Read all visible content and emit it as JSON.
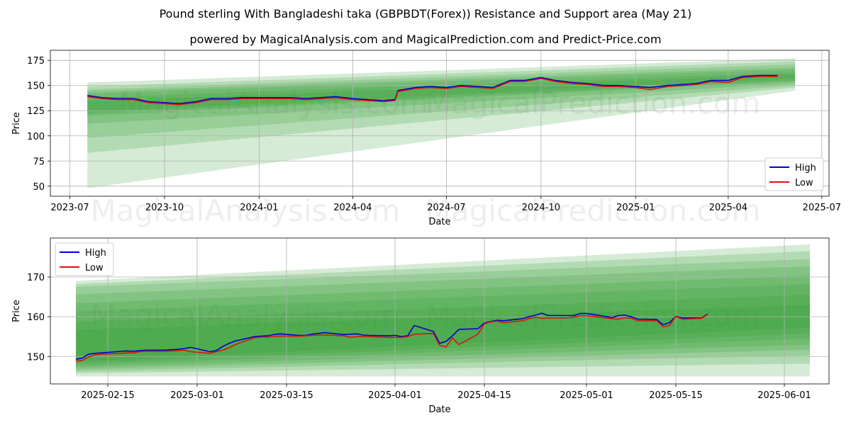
{
  "titles": {
    "main": "Pound sterling With Bangladeshi taka (GBPBDT(Forex)) Resistance and Support area (May 21)",
    "sub": "powered by MagicalAnalysis.com and MagicalPrediction.com and Predict-Price.com"
  },
  "watermarks": [
    "MagicalAnalysis.com",
    "MagicalPrediction.com"
  ],
  "colors": {
    "high": "#0000cc",
    "low": "#dd1111",
    "band": "#2e9a2e",
    "grid": "#b0b0b0"
  },
  "chart_data": [
    {
      "type": "line",
      "xlabel": "Date",
      "ylabel": "Price",
      "x_ticks": [
        "2023-07",
        "2023-10",
        "2024-01",
        "2024-04",
        "2024-07",
        "2024-10",
        "2025-01",
        "2025-04",
        "2025-07"
      ],
      "y_ticks": [
        50,
        75,
        100,
        125,
        150,
        175
      ],
      "xlim": [
        "2023-06-12",
        "2025-07-08"
      ],
      "ylim": [
        40,
        185
      ],
      "grid": true,
      "legend_position": "lower right",
      "series": [
        {
          "name": "High",
          "x": [
            "2023-07-18",
            "2023-08-01",
            "2023-08-15",
            "2023-09-01",
            "2023-09-15",
            "2023-10-01",
            "2023-10-15",
            "2023-11-01",
            "2023-11-15",
            "2023-12-01",
            "2023-12-15",
            "2024-01-01",
            "2024-01-15",
            "2024-02-01",
            "2024-02-15",
            "2024-03-01",
            "2024-03-15",
            "2024-04-01",
            "2024-04-15",
            "2024-05-01",
            "2024-05-12",
            "2024-05-15",
            "2024-06-01",
            "2024-06-15",
            "2024-07-01",
            "2024-07-15",
            "2024-08-01",
            "2024-08-15",
            "2024-09-01",
            "2024-09-15",
            "2024-10-01",
            "2024-10-15",
            "2024-11-01",
            "2024-11-15",
            "2024-12-01",
            "2024-12-15",
            "2025-01-01",
            "2025-01-15",
            "2025-02-01",
            "2025-02-15",
            "2025-03-01",
            "2025-03-15",
            "2025-04-01",
            "2025-04-15",
            "2025-05-01",
            "2025-05-19"
          ],
          "y": [
            140,
            138,
            137,
            137,
            134,
            133,
            132,
            134,
            137,
            137,
            138,
            138,
            138,
            138,
            137,
            138,
            139,
            137,
            136,
            135,
            136,
            145,
            148,
            149,
            148,
            150,
            149,
            148,
            155,
            155,
            158,
            155,
            153,
            152,
            150,
            150,
            149,
            148,
            150,
            151,
            152,
            155,
            155,
            159,
            160,
            160
          ]
        },
        {
          "name": "Low",
          "x": [
            "2023-07-18",
            "2023-08-01",
            "2023-08-15",
            "2023-09-01",
            "2023-09-15",
            "2023-10-01",
            "2023-10-15",
            "2023-11-01",
            "2023-11-15",
            "2023-12-01",
            "2023-12-15",
            "2024-01-01",
            "2024-01-15",
            "2024-02-01",
            "2024-02-15",
            "2024-03-01",
            "2024-03-15",
            "2024-04-01",
            "2024-04-15",
            "2024-05-01",
            "2024-05-12",
            "2024-05-15",
            "2024-06-01",
            "2024-06-15",
            "2024-07-01",
            "2024-07-15",
            "2024-08-01",
            "2024-08-15",
            "2024-09-01",
            "2024-09-15",
            "2024-10-01",
            "2024-10-15",
            "2024-11-01",
            "2024-11-15",
            "2024-12-01",
            "2024-12-15",
            "2025-01-01",
            "2025-01-15",
            "2025-02-01",
            "2025-02-15",
            "2025-03-01",
            "2025-03-15",
            "2025-04-01",
            "2025-04-15",
            "2025-05-01",
            "2025-05-19"
          ],
          "y": [
            139,
            137,
            136,
            136,
            133,
            132,
            131,
            133,
            136,
            136,
            137,
            137,
            137,
            137,
            136,
            137,
            138,
            136,
            135,
            134,
            135,
            144,
            147,
            148,
            147,
            149,
            148,
            147,
            154,
            154,
            157,
            154,
            152,
            151,
            149,
            149,
            148,
            146,
            149,
            150,
            151,
            154,
            153,
            158,
            159,
            159
          ]
        }
      ],
      "bands": [
        {
          "x": [
            "2023-07-18",
            "2025-06-05"
          ],
          "upper": [
            153,
            177
          ],
          "lower": [
            48,
            145
          ]
        },
        {
          "x": [
            "2023-07-18",
            "2025-06-05"
          ],
          "upper": [
            149,
            174
          ],
          "lower": [
            83,
            148
          ]
        },
        {
          "x": [
            "2023-07-18",
            "2025-06-05"
          ],
          "upper": [
            146,
            171
          ],
          "lower": [
            98,
            150
          ]
        },
        {
          "x": [
            "2023-07-18",
            "2025-06-05"
          ],
          "upper": [
            144,
            168
          ],
          "lower": [
            112,
            152
          ]
        },
        {
          "x": [
            "2023-07-18",
            "2025-06-05"
          ],
          "upper": [
            142,
            166
          ],
          "lower": [
            120,
            154
          ]
        },
        {
          "x": [
            "2023-07-18",
            "2025-06-05"
          ],
          "upper": [
            138,
            163
          ],
          "lower": [
            122,
            155
          ]
        },
        {
          "x": [
            "2023-07-18",
            "2025-06-05"
          ],
          "upper": [
            134,
            161
          ],
          "lower": [
            124,
            157
          ]
        }
      ]
    },
    {
      "type": "line",
      "xlabel": "Date",
      "ylabel": "Price",
      "x_ticks": [
        "2025-02-15",
        "2025-03-01",
        "2025-03-15",
        "2025-04-01",
        "2025-04-15",
        "2025-05-01",
        "2025-05-15",
        "2025-06-01"
      ],
      "y_ticks": [
        150,
        160,
        170
      ],
      "xlim": [
        "2025-02-06",
        "2025-06-08"
      ],
      "ylim": [
        143.1,
        179.8
      ],
      "grid": true,
      "legend_position": "upper left",
      "series": [
        {
          "name": "High",
          "x": [
            "2025-02-10",
            "2025-02-11",
            "2025-02-12",
            "2025-02-13",
            "2025-02-14",
            "2025-02-17",
            "2025-02-18",
            "2025-02-19",
            "2025-02-20",
            "2025-02-21",
            "2025-02-24",
            "2025-02-25",
            "2025-02-26",
            "2025-02-27",
            "2025-02-28",
            "2025-03-03",
            "2025-03-04",
            "2025-03-05",
            "2025-03-06",
            "2025-03-07",
            "2025-03-10",
            "2025-03-11",
            "2025-03-12",
            "2025-03-13",
            "2025-03-14",
            "2025-03-17",
            "2025-03-18",
            "2025-03-19",
            "2025-03-20",
            "2025-03-21",
            "2025-03-24",
            "2025-03-25",
            "2025-03-26",
            "2025-03-27",
            "2025-03-28",
            "2025-03-31",
            "2025-04-01",
            "2025-04-02",
            "2025-04-03",
            "2025-04-04",
            "2025-04-07",
            "2025-04-08",
            "2025-04-09",
            "2025-04-10",
            "2025-04-11",
            "2025-04-14",
            "2025-04-15",
            "2025-04-16",
            "2025-04-17",
            "2025-04-18",
            "2025-04-21",
            "2025-04-22",
            "2025-04-23",
            "2025-04-24",
            "2025-04-25",
            "2025-04-28",
            "2025-04-29",
            "2025-04-30",
            "2025-05-01",
            "2025-05-02",
            "2025-05-05",
            "2025-05-06",
            "2025-05-07",
            "2025-05-08",
            "2025-05-09",
            "2025-05-12",
            "2025-05-13",
            "2025-05-14",
            "2025-05-15",
            "2025-05-16",
            "2025-05-19",
            "2025-05-20"
          ],
          "y": [
            149.3,
            149.6,
            150.6,
            150.8,
            150.9,
            151.3,
            151.4,
            151.3,
            151.5,
            151.6,
            151.6,
            151.7,
            151.8,
            152.0,
            152.3,
            151.2,
            151.5,
            152.5,
            153.3,
            153.9,
            155.0,
            155.1,
            155.2,
            155.5,
            155.7,
            155.3,
            155.3,
            155.6,
            155.8,
            156.0,
            155.5,
            155.6,
            155.7,
            155.4,
            155.3,
            155.2,
            155.3,
            155.0,
            155.2,
            157.8,
            156.3,
            153.3,
            153.8,
            155.2,
            156.8,
            157.0,
            158.4,
            158.8,
            159.1,
            159.0,
            159.5,
            160.0,
            160.4,
            160.9,
            160.3,
            160.3,
            160.3,
            160.8,
            160.8,
            160.6,
            159.8,
            160.3,
            160.4,
            160.0,
            159.4,
            159.3,
            158.0,
            158.5,
            160.1,
            159.7,
            159.7,
            160.7
          ]
        },
        {
          "name": "Low",
          "x": [
            "2025-02-10",
            "2025-02-11",
            "2025-02-12",
            "2025-02-13",
            "2025-02-14",
            "2025-02-17",
            "2025-02-18",
            "2025-02-19",
            "2025-02-20",
            "2025-02-21",
            "2025-02-24",
            "2025-02-25",
            "2025-02-26",
            "2025-02-27",
            "2025-02-28",
            "2025-03-03",
            "2025-03-04",
            "2025-03-05",
            "2025-03-06",
            "2025-03-07",
            "2025-03-10",
            "2025-03-11",
            "2025-03-12",
            "2025-03-13",
            "2025-03-14",
            "2025-03-17",
            "2025-03-18",
            "2025-03-19",
            "2025-03-20",
            "2025-03-21",
            "2025-03-24",
            "2025-03-25",
            "2025-03-26",
            "2025-03-27",
            "2025-03-28",
            "2025-03-31",
            "2025-04-01",
            "2025-04-02",
            "2025-04-03",
            "2025-04-04",
            "2025-04-07",
            "2025-04-08",
            "2025-04-09",
            "2025-04-10",
            "2025-04-11",
            "2025-04-14",
            "2025-04-15",
            "2025-04-16",
            "2025-04-17",
            "2025-04-18",
            "2025-04-21",
            "2025-04-22",
            "2025-04-23",
            "2025-04-24",
            "2025-04-25",
            "2025-04-28",
            "2025-04-29",
            "2025-04-30",
            "2025-05-01",
            "2025-05-02",
            "2025-05-05",
            "2025-05-06",
            "2025-05-07",
            "2025-05-08",
            "2025-05-09",
            "2025-05-12",
            "2025-05-13",
            "2025-05-14",
            "2025-05-15",
            "2025-05-16",
            "2025-05-19",
            "2025-05-20"
          ],
          "y": [
            148.8,
            149.0,
            149.9,
            150.4,
            150.6,
            150.8,
            150.9,
            150.9,
            151.2,
            151.3,
            151.3,
            151.4,
            151.5,
            151.6,
            151.2,
            150.8,
            151.2,
            151.6,
            152.2,
            153.0,
            154.7,
            154.9,
            154.9,
            155.0,
            155.1,
            155.1,
            155.2,
            155.3,
            155.4,
            155.4,
            155.2,
            154.8,
            155.0,
            155.0,
            155.0,
            154.8,
            154.8,
            154.8,
            155.0,
            155.6,
            155.8,
            152.8,
            152.4,
            154.7,
            153.0,
            155.6,
            158.2,
            158.7,
            158.9,
            158.5,
            159.0,
            159.5,
            159.9,
            159.6,
            159.7,
            159.7,
            159.9,
            160.2,
            160.2,
            160.1,
            159.5,
            159.4,
            159.8,
            159.6,
            159.0,
            159.0,
            157.5,
            157.8,
            160.1,
            159.4,
            159.6,
            160.6
          ]
        }
      ],
      "bands": [
        {
          "x": [
            "2025-02-10",
            "2025-06-05"
          ],
          "upper": [
            169.0,
            178.2
          ],
          "lower": [
            145.0,
            145.0
          ]
        },
        {
          "x": [
            "2025-02-10",
            "2025-06-05"
          ],
          "upper": [
            168.2,
            176.5
          ],
          "lower": [
            145.8,
            148.2
          ]
        },
        {
          "x": [
            "2025-02-10",
            "2025-06-05"
          ],
          "upper": [
            167.5,
            174.5
          ],
          "lower": [
            146.3,
            150.3
          ]
        },
        {
          "x": [
            "2025-02-10",
            "2025-06-05"
          ],
          "upper": [
            165.6,
            172.7
          ],
          "lower": [
            146.8,
            151.7
          ]
        },
        {
          "x": [
            "2025-02-10",
            "2025-06-05"
          ],
          "upper": [
            163.4,
            170.4
          ],
          "lower": [
            147.3,
            153.0
          ]
        },
        {
          "x": [
            "2025-02-10",
            "2025-06-05"
          ],
          "upper": [
            161.4,
            168.2
          ],
          "lower": [
            147.8,
            154.5
          ]
        },
        {
          "x": [
            "2025-02-10",
            "2025-06-05"
          ],
          "upper": [
            158.8,
            165.5
          ],
          "lower": [
            148.3,
            155.8
          ]
        },
        {
          "x": [
            "2025-02-10",
            "2025-06-05"
          ],
          "upper": [
            156.7,
            163.0
          ],
          "lower": [
            148.8,
            157.3
          ]
        }
      ]
    }
  ]
}
